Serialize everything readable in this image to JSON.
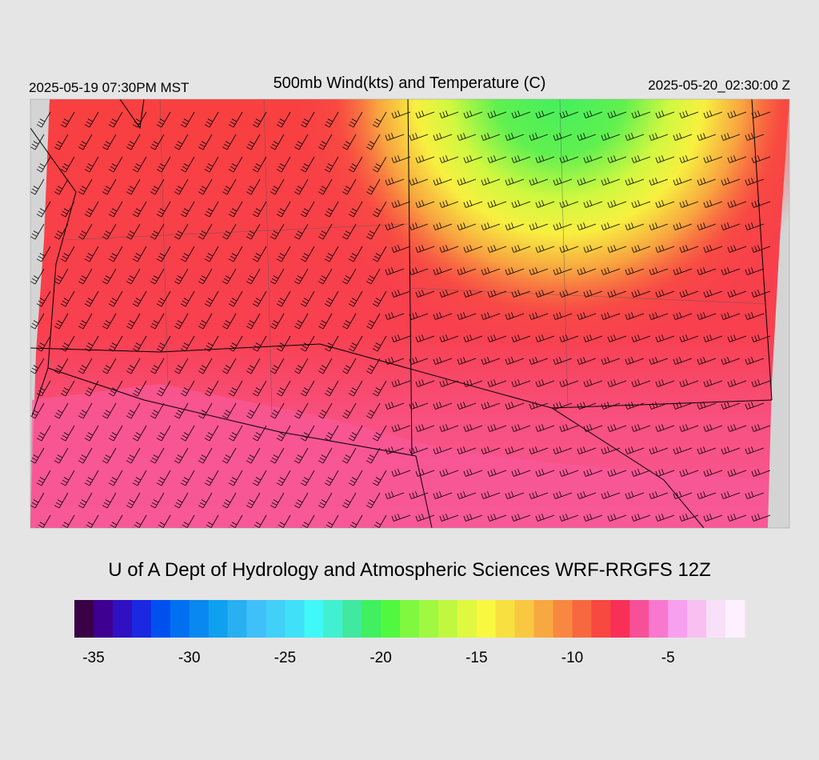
{
  "header": {
    "left_time": "2025-05-19 07:30PM MST",
    "title": "500mb Wind(kts) and Temperature (C)",
    "right_time": "2025-05-20_02:30:00 Z"
  },
  "credit": "U of A Dept of Hydrology and Atmospheric Sciences WRF-RRGFS 12Z",
  "colorbar": {
    "range": [
      -36,
      -1
    ],
    "ticks": [
      -35,
      -30,
      -25,
      -20,
      -15,
      -10,
      -5
    ],
    "colors": [
      "#3a0045",
      "#3d0090",
      "#3010c0",
      "#1a28e0",
      "#0050f0",
      "#0070f0",
      "#0888f0",
      "#10a0f0",
      "#28b0f0",
      "#40c0f8",
      "#40d0f8",
      "#40e0f8",
      "#40f8f8",
      "#40f0d0",
      "#40e8a0",
      "#40f060",
      "#50f840",
      "#80f840",
      "#a0f840",
      "#c0f840",
      "#e0f840",
      "#f8f840",
      "#f8e040",
      "#f8c840",
      "#f8a840",
      "#f88840",
      "#f86840",
      "#f84840",
      "#f83058",
      "#f85098",
      "#f878d0",
      "#f8a0f0",
      "#f8c0f0",
      "#f8e0f8",
      "#fff0ff"
    ]
  }
}
